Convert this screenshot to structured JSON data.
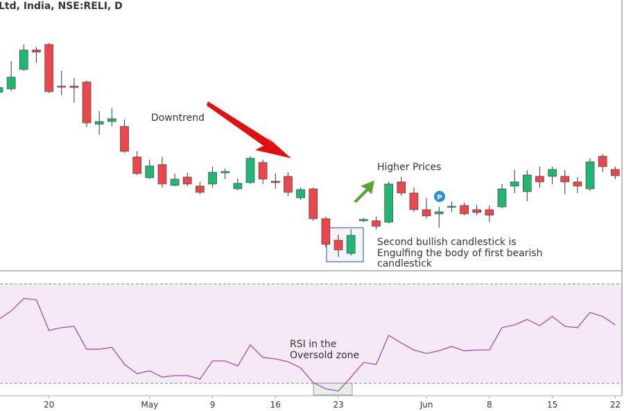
{
  "chart_data": [
    {
      "type": "candlestick",
      "title": "Ltd, India, NSE:RELI, D",
      "open": [
        267,
        272,
        300,
        328,
        336,
        276,
        276,
        282,
        221,
        225,
        218,
        174,
        144,
        163,
        133,
        145,
        132,
        135,
        151,
        128,
        137,
        166,
        139,
        146,
        115,
        128,
        85,
        54,
        35,
        82,
        82,
        80,
        138,
        122,
        98,
        92,
        102,
        104,
        98,
        98,
        102,
        132,
        124,
        146,
        146,
        146,
        138,
        128,
        175,
        156
      ],
      "high": [
        280,
        312,
        336,
        332,
        338,
        298,
        288,
        284,
        240,
        244,
        228,
        182,
        170,
        174,
        150,
        151,
        138,
        160,
        157,
        143,
        175,
        170,
        150,
        152,
        130,
        130,
        88,
        62,
        70,
        86,
        88,
        138,
        145,
        130,
        115,
        102,
        110,
        108,
        105,
        104,
        135,
        155,
        155,
        160,
        160,
        155,
        145,
        172,
        178,
        160
      ],
      "low": [
        265,
        269,
        298,
        310,
        266,
        263,
        252,
        217,
        206,
        218,
        180,
        148,
        142,
        130,
        132,
        132,
        120,
        130,
        142,
        126,
        135,
        135,
        128,
        118,
        112,
        82,
        44,
        30,
        32,
        80,
        70,
        78,
        118,
        95,
        85,
        72,
        95,
        90,
        90,
        80,
        100,
        122,
        110,
        130,
        135,
        120,
        122,
        125,
        152,
        142
      ],
      "close": [
        274,
        289,
        328,
        325,
        268,
        275,
        274,
        223,
        225,
        229,
        182,
        150,
        161,
        135,
        142,
        135,
        123,
        152,
        153,
        136,
        172,
        142,
        137,
        123,
        127,
        85,
        48,
        40,
        61,
        84,
        74,
        135,
        122,
        98,
        89,
        95,
        103,
        92,
        94,
        90,
        128,
        138,
        148,
        138,
        156,
        138,
        132,
        167,
        160,
        147
      ],
      "up_color": "#22b573",
      "down_color": "#e8484b",
      "ylim": [
        10,
        400
      ],
      "annotations": [
        "Downtrend",
        "Higher Prices",
        "Second bullish candlestick is",
        "Engulfing the body of first bearish",
        "candlestick"
      ]
    },
    {
      "type": "line",
      "categories": [
        null,
        null,
        null,
        null,
        "20",
        null,
        null,
        null,
        null,
        null,
        null,
        null,
        "May",
        null,
        null,
        null,
        null,
        "9",
        null,
        null,
        null,
        null,
        "16",
        null,
        null,
        null,
        null,
        "23",
        null,
        null,
        null,
        null,
        null,
        null,
        "Jun",
        null,
        null,
        null,
        null,
        "8",
        null,
        null,
        null,
        null,
        "15",
        null,
        null,
        null,
        null,
        "22"
      ],
      "values": [
        55.7,
        59.1,
        64.1,
        63.6,
        51.3,
        52.4,
        52.9,
        43.7,
        43.7,
        44.5,
        37.6,
        33.9,
        35.0,
        32.5,
        33.1,
        33.1,
        31.7,
        39.0,
        39.0,
        37.0,
        45.4,
        40.4,
        39.8,
        38.7,
        36.2,
        30.3,
        27.8,
        26.9,
        32.5,
        38.4,
        37.6,
        49.3,
        46.2,
        43.4,
        42.0,
        43.1,
        44.8,
        43.1,
        43.4,
        43.4,
        52.4,
        53.5,
        55.7,
        53.2,
        56.9,
        52.9,
        52.4,
        58.5,
        56.9,
        53.5
      ],
      "color": "#a0509f",
      "ylim": [
        25,
        75
      ],
      "bands": [
        30,
        70
      ],
      "annotations": [
        "RSI in the",
        "Oversold zone"
      ]
    }
  ]
}
